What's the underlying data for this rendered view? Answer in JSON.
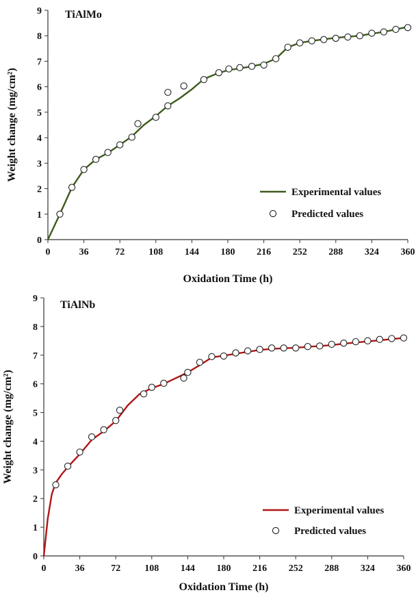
{
  "chart_data": [
    {
      "type": "line",
      "title": "TiAlMo",
      "xlabel": "Oxidation Time (h)",
      "ylabel": "Weight change (mg/cm²)",
      "xlim": [
        0,
        360
      ],
      "ylim": [
        0,
        9
      ],
      "xticks": [
        "0",
        "36",
        "72",
        "108",
        "144",
        "180",
        "216",
        "252",
        "288",
        "324",
        "360"
      ],
      "yticks": [
        "0",
        "1",
        "2",
        "3",
        "4",
        "5",
        "6",
        "7",
        "8",
        "9"
      ],
      "grid": false,
      "legend_position": "lower-right",
      "series": [
        {
          "name": "Experimental values",
          "kind": "line",
          "color": "#3d5a1e",
          "x": [
            0,
            12,
            24,
            36,
            48,
            60,
            72,
            84,
            96,
            108,
            120,
            132,
            144,
            156,
            168,
            180,
            192,
            204,
            216,
            228,
            240,
            252,
            264,
            276,
            288,
            300,
            312,
            324,
            336,
            348,
            360
          ],
          "y": [
            0,
            1.0,
            2.05,
            2.75,
            3.15,
            3.4,
            3.72,
            4.05,
            4.5,
            4.85,
            5.25,
            5.55,
            5.9,
            6.3,
            6.5,
            6.65,
            6.72,
            6.8,
            6.9,
            7.1,
            7.55,
            7.72,
            7.8,
            7.86,
            7.92,
            7.96,
            8.0,
            8.08,
            8.15,
            8.25,
            8.35
          ]
        },
        {
          "name": "Predicted values",
          "kind": "scatter",
          "x": [
            12,
            24,
            36,
            48,
            60,
            72,
            84,
            90,
            108,
            120,
            120,
            136,
            156,
            171,
            181,
            192,
            204,
            216,
            228,
            240,
            252,
            264,
            276,
            288,
            300,
            312,
            324,
            336,
            348,
            360
          ],
          "y": [
            1.0,
            2.05,
            2.75,
            3.15,
            3.42,
            3.72,
            4.02,
            4.55,
            4.8,
            5.25,
            5.78,
            6.03,
            6.28,
            6.55,
            6.7,
            6.75,
            6.8,
            6.85,
            7.1,
            7.55,
            7.72,
            7.8,
            7.85,
            7.9,
            7.95,
            8.0,
            8.1,
            8.15,
            8.25,
            8.32
          ]
        }
      ]
    },
    {
      "type": "line",
      "title": "TiAlNb",
      "xlabel": "Oxidation Time (h)",
      "ylabel": "Weight change (mg/cm²)",
      "xlim": [
        0,
        360
      ],
      "ylim": [
        0,
        9
      ],
      "xticks": [
        "0",
        "36",
        "72",
        "108",
        "144",
        "180",
        "216",
        "252",
        "288",
        "324",
        "360"
      ],
      "yticks": [
        "0",
        "1",
        "2",
        "3",
        "4",
        "5",
        "6",
        "7",
        "8",
        "9"
      ],
      "grid": false,
      "legend_position": "lower-right",
      "series": [
        {
          "name": "Experimental values",
          "kind": "line",
          "color": "#b01515",
          "x": [
            0,
            4,
            8,
            12,
            18,
            24,
            36,
            48,
            60,
            72,
            84,
            96,
            108,
            120,
            132,
            144,
            156,
            168,
            180,
            192,
            204,
            216,
            228,
            240,
            252,
            264,
            276,
            288,
            300,
            312,
            324,
            336,
            348,
            360
          ],
          "y": [
            0,
            1.3,
            2.15,
            2.55,
            2.85,
            3.1,
            3.55,
            4.05,
            4.35,
            4.7,
            5.25,
            5.65,
            5.85,
            6.0,
            6.2,
            6.4,
            6.65,
            6.92,
            6.98,
            7.05,
            7.12,
            7.18,
            7.22,
            7.24,
            7.26,
            7.29,
            7.32,
            7.35,
            7.4,
            7.44,
            7.48,
            7.52,
            7.56,
            7.6
          ]
        },
        {
          "name": "Predicted values",
          "kind": "scatter",
          "x": [
            12,
            24,
            36,
            48,
            60,
            72,
            76,
            100,
            108,
            120,
            140,
            144,
            156,
            168,
            180,
            192,
            204,
            216,
            228,
            240,
            252,
            264,
            276,
            288,
            300,
            312,
            324,
            336,
            348,
            360
          ],
          "y": [
            2.48,
            3.13,
            3.62,
            4.15,
            4.4,
            4.72,
            5.08,
            5.65,
            5.88,
            6.02,
            6.2,
            6.4,
            6.75,
            6.95,
            6.97,
            7.08,
            7.15,
            7.2,
            7.25,
            7.25,
            7.25,
            7.3,
            7.32,
            7.38,
            7.42,
            7.47,
            7.5,
            7.55,
            7.58,
            7.6
          ]
        }
      ]
    }
  ]
}
